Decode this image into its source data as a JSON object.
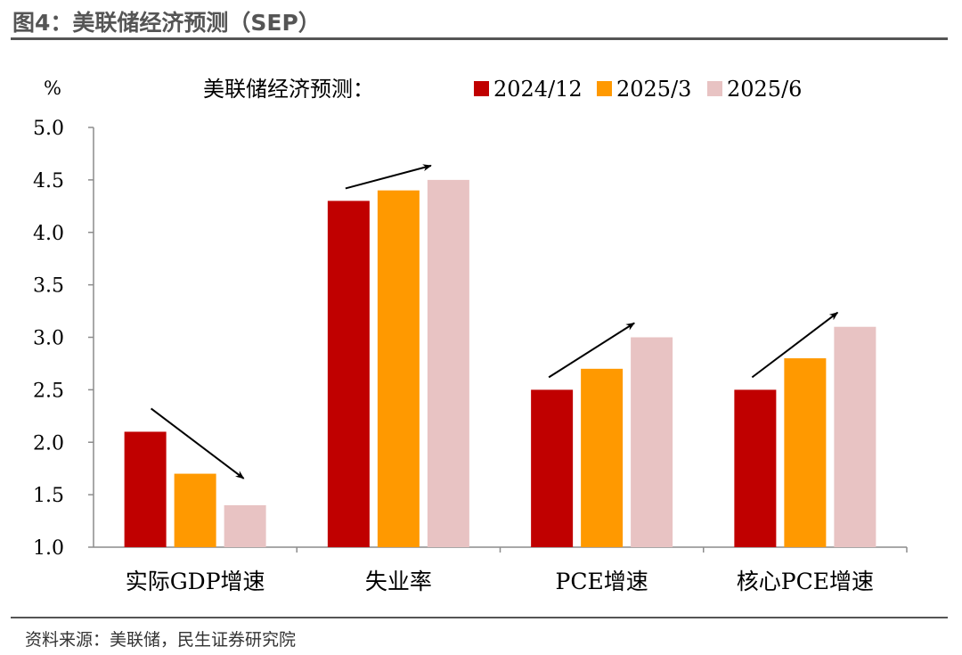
{
  "figure": {
    "title": "图4：美联储经济预测（SEP）",
    "source": "资料来源：美联储，民生证券研究院"
  },
  "chart_data": {
    "type": "bar",
    "title": "美联储经济预测：",
    "ylabel": "%",
    "xlabel": "",
    "categories": [
      "实际GDP增速",
      "失业率",
      "PCE增速",
      "核心PCE增速"
    ],
    "series": [
      {
        "name": "2024/12",
        "color": "#C00000",
        "values": [
          2.1,
          4.3,
          2.5,
          2.5
        ]
      },
      {
        "name": "2025/3",
        "color": "#FF9900",
        "values": [
          1.7,
          4.4,
          2.7,
          2.8
        ]
      },
      {
        "name": "2025/6",
        "color": "#E8C3C3",
        "values": [
          1.4,
          4.5,
          3.0,
          3.1
        ]
      }
    ],
    "ylim": [
      1.0,
      5.0
    ],
    "yticks": [
      "1.0",
      "1.5",
      "2.0",
      "2.5",
      "3.0",
      "3.5",
      "4.0",
      "4.5",
      "5.0"
    ],
    "grid": false,
    "legend_position": "top",
    "trend_arrows": [
      "down",
      "up",
      "up",
      "up"
    ]
  }
}
